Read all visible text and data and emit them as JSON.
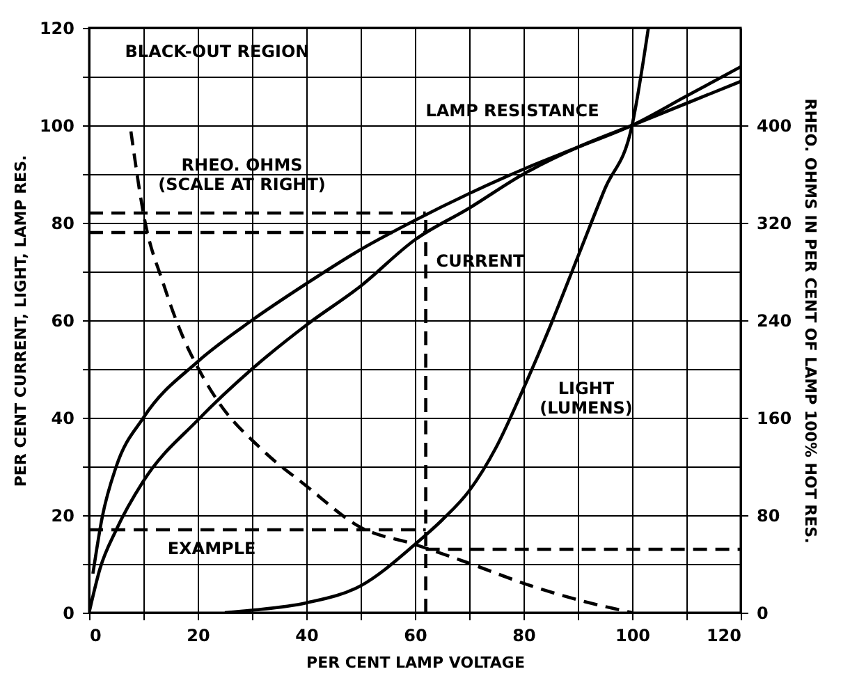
{
  "chart_data": {
    "type": "line",
    "xlabel": "PER CENT LAMP VOLTAGE",
    "ylabel": "PER CENT CURRENT, LIGHT, LAMP RES.",
    "y2label": "RHEO. OHMS IN PER CENT OF LAMP 100% HOT RES.",
    "xlim": [
      0,
      120
    ],
    "ylim": [
      0,
      120
    ],
    "y2lim": [
      0,
      480
    ],
    "xticks": [
      0,
      {
        "value": 10,
        "label": null
      },
      20,
      {
        "value": 30,
        "label": null
      },
      40,
      {
        "value": 50,
        "label": null
      },
      60,
      {
        "value": 70,
        "label": null
      },
      80,
      {
        "value": 90,
        "label": null
      },
      100,
      {
        "value": 110,
        "label": null
      },
      120
    ],
    "yticks": [
      0,
      {
        "value": 10,
        "label": null
      },
      20,
      {
        "value": 30,
        "label": null
      },
      40,
      {
        "value": 50,
        "label": null
      },
      60,
      {
        "value": 70,
        "label": null
      },
      80,
      {
        "value": 90,
        "label": null
      },
      100,
      {
        "value": 110,
        "label": null
      },
      120
    ],
    "y2ticks": [
      0,
      80,
      160,
      240,
      320,
      400
    ],
    "grid": true,
    "line_style": "solid",
    "series": [
      {
        "name": "LAMP RESISTANCE",
        "color": "#000000",
        "x": [
          0.7,
          2.4,
          5,
          10,
          20,
          30,
          40,
          50,
          60,
          70,
          80,
          90,
          100,
          110,
          120
        ],
        "values": [
          8,
          19.5,
          30,
          40,
          51.5,
          60,
          67.5,
          74.5,
          80.5,
          86,
          91,
          95.5,
          100,
          106,
          112
        ]
      },
      {
        "name": "CURRENT",
        "color": "#000000",
        "x": [
          0,
          2,
          5,
          10,
          20,
          30,
          40,
          50,
          60,
          70,
          80,
          90,
          100,
          110,
          120
        ],
        "values": [
          0,
          9,
          17,
          27,
          39.5,
          50,
          59,
          67,
          76.5,
          83,
          90,
          95.5,
          100,
          104.5,
          109
        ]
      },
      {
        "name": "LIGHT\n(LUMENS)",
        "color": "#000000",
        "x": [
          25,
          30,
          40,
          50,
          60,
          65,
          70,
          75,
          80,
          85,
          90,
          95,
          100,
          103
        ],
        "values": [
          0,
          0.5,
          2,
          5.5,
          14,
          19,
          25,
          34,
          46,
          59,
          73,
          87,
          100,
          120
        ]
      },
      {
        "name": "RHEO. OHMS\n(SCALE AT RIGHT)",
        "color": "#000000",
        "axis": "y2",
        "line_style": "dashed",
        "x": [
          7.7,
          10.2,
          13.6,
          17.6,
          19.8,
          23.5,
          31.8,
          40,
          50,
          60,
          69.7,
          81.4,
          91.3,
          97,
          100
        ],
        "values": [
          395,
          323,
          271,
          223,
          203,
          175,
          134,
          104,
          70,
          56,
          41,
          22,
          9,
          3,
          0
        ]
      },
      {
        "color": "#000000",
        "line_style": "dashed",
        "x": [
          0,
          62
        ],
        "values": [
          82,
          82
        ]
      },
      {
        "color": "#000000",
        "line_style": "dashed",
        "x": [
          0,
          62
        ],
        "values": [
          78,
          78
        ]
      },
      {
        "color": "#000000",
        "line_style": "dashed",
        "x": [
          62,
          62
        ],
        "values": [
          0,
          82
        ]
      },
      {
        "color": "#000000",
        "line_style": "dashed",
        "x": [
          0,
          62
        ],
        "values": [
          17,
          17
        ]
      },
      {
        "color": "#000000",
        "line_style": "dashed",
        "x": [
          62,
          120
        ],
        "values": [
          13,
          13
        ]
      }
    ],
    "annotations": [
      "EXAMPLE",
      "BLACK-OUT REGION"
    ]
  }
}
